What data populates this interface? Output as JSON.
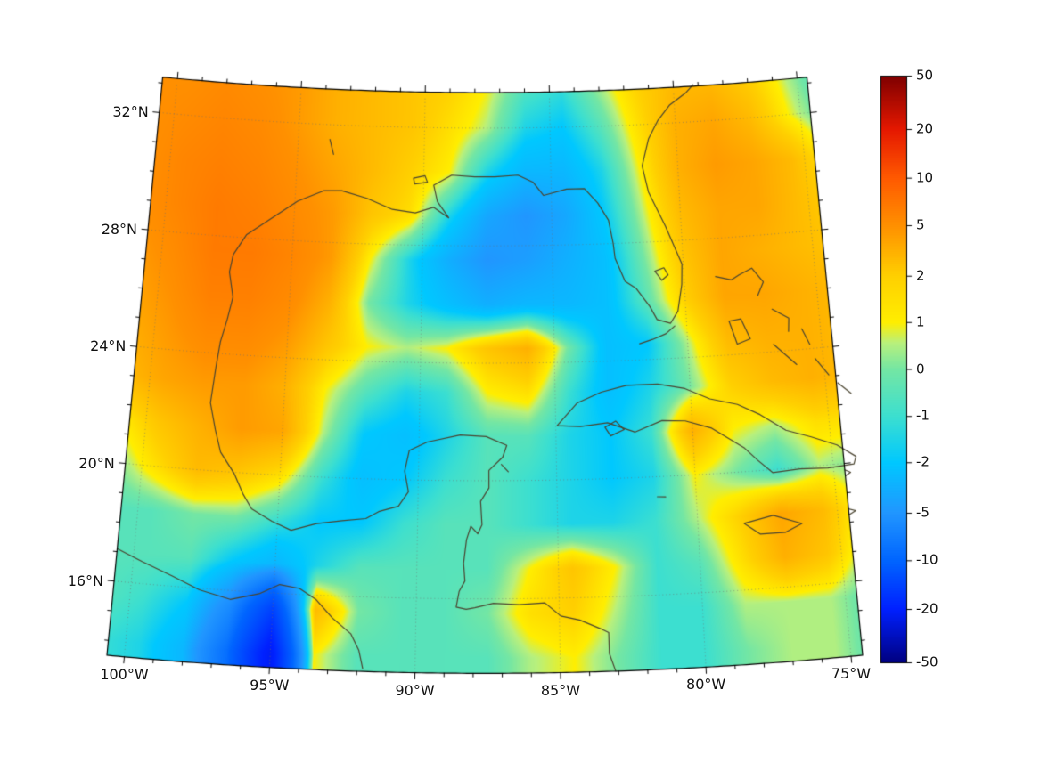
{
  "map": {
    "extent": {
      "lon_min": -100.6,
      "lon_max": -74.6,
      "lat_min": 13.5,
      "lat_max": 33.2
    },
    "projection": {
      "type": "lambert-conformal-conic",
      "std_parallel_1": 20,
      "std_parallel_2": 30,
      "center_lon": -87.6
    },
    "lat_ticks": [
      {
        "value": 32,
        "label": "32°N"
      },
      {
        "value": 28,
        "label": "28°N"
      },
      {
        "value": 24,
        "label": "24°N"
      },
      {
        "value": 20,
        "label": "20°N"
      },
      {
        "value": 16,
        "label": "16°N"
      }
    ],
    "lon_ticks": [
      {
        "value": -100,
        "label": "100°W"
      },
      {
        "value": -95,
        "label": "95°W"
      },
      {
        "value": -90,
        "label": "90°W"
      },
      {
        "value": -85,
        "label": "85°W"
      },
      {
        "value": -80,
        "label": "80°W"
      },
      {
        "value": -75,
        "label": "75°W"
      }
    ],
    "minor_tick_step_deg": 1,
    "coastline_color": "#4a4430",
    "graticule_color": "#6f6f6f",
    "frame_color": "#000000"
  },
  "colorbar": {
    "range": [
      -50,
      50
    ],
    "ticks": [
      {
        "value": 50,
        "label": "50"
      },
      {
        "value": 20,
        "label": "20"
      },
      {
        "value": 10,
        "label": "10"
      },
      {
        "value": 5,
        "label": "5"
      },
      {
        "value": 2,
        "label": "2"
      },
      {
        "value": 1,
        "label": "1"
      },
      {
        "value": 0,
        "label": "0"
      },
      {
        "value": -1,
        "label": "-1"
      },
      {
        "value": -2,
        "label": "-2"
      },
      {
        "value": -5,
        "label": "-5"
      },
      {
        "value": -10,
        "label": "-10"
      },
      {
        "value": -20,
        "label": "-20"
      },
      {
        "value": -50,
        "label": "-50"
      }
    ]
  },
  "chart_data": {
    "type": "heatmap",
    "description": "Scalar field over the Gulf of Mexico / western Caribbean on a Lambert conformal map, symlog-like color scale from -50 to 50",
    "scale": {
      "values": [
        -50,
        -20,
        -10,
        -5,
        -2,
        -1,
        0,
        1,
        2,
        5,
        10,
        20,
        50
      ],
      "fractions": [
        0,
        0.091,
        0.174,
        0.255,
        0.341,
        0.42,
        0.5,
        0.58,
        0.659,
        0.745,
        0.826,
        0.909,
        1
      ]
    },
    "colormap": [
      {
        "t": 0.0,
        "color": "#000080"
      },
      {
        "t": 0.091,
        "color": "#0020ff"
      },
      {
        "t": 0.174,
        "color": "#0065ff"
      },
      {
        "t": 0.255,
        "color": "#2196ff"
      },
      {
        "t": 0.341,
        "color": "#00c8ff"
      },
      {
        "t": 0.42,
        "color": "#3cdfd0"
      },
      {
        "t": 0.5,
        "color": "#74e6a4"
      },
      {
        "t": 0.545,
        "color": "#b8f07d"
      },
      {
        "t": 0.58,
        "color": "#ffee00"
      },
      {
        "t": 0.659,
        "color": "#ffd000"
      },
      {
        "t": 0.745,
        "color": "#ff9000"
      },
      {
        "t": 0.826,
        "color": "#ff5a00"
      },
      {
        "t": 0.909,
        "color": "#e51800"
      },
      {
        "t": 1.0,
        "color": "#7f0000"
      }
    ],
    "lon": [
      -101,
      -99.5,
      -98,
      -96.5,
      -95,
      -93.5,
      -92,
      -90.5,
      -89,
      -87.5,
      -86,
      -84.5,
      -83,
      -81.5,
      -80,
      -78.5,
      -77,
      -75.5,
      -74
    ],
    "lat": [
      33.5,
      32,
      30.5,
      29,
      27.5,
      26,
      24.5,
      23,
      21.5,
      20,
      18.5,
      17,
      15.5,
      14
    ],
    "values": [
      [
        5,
        5,
        5.5,
        5,
        4.5,
        3.5,
        3,
        2.5,
        2,
        1,
        -0.5,
        -1,
        0.5,
        2,
        3,
        3,
        2,
        0.5,
        -1
      ],
      [
        5,
        5.5,
        6,
        5.5,
        4.5,
        3.5,
        3,
        2.5,
        1.5,
        0.5,
        -1.5,
        -2,
        -0.5,
        1.5,
        3.5,
        4,
        3,
        1,
        -0.5
      ],
      [
        5,
        6,
        6.5,
        6,
        5,
        4,
        3,
        2,
        1,
        -1.5,
        -3,
        -3,
        -1.5,
        1,
        3.5,
        4.5,
        4,
        3,
        1
      ],
      [
        5,
        6,
        7,
        6.5,
        5.5,
        4.5,
        2.5,
        1.5,
        -1.5,
        -4,
        -5,
        -4,
        -2,
        0.5,
        3,
        4,
        4,
        3,
        2
      ],
      [
        4.5,
        5.5,
        7,
        7,
        6,
        4.5,
        1,
        -1.5,
        -3.5,
        -5,
        -4.5,
        -3.5,
        -2.5,
        0,
        2.5,
        4,
        3.5,
        3,
        2.5
      ],
      [
        4,
        5,
        6.5,
        6.5,
        5.5,
        3.5,
        0,
        -1.5,
        -2.5,
        -3.5,
        -3,
        -3,
        -2.5,
        -0.5,
        2,
        4,
        4,
        3.5,
        3
      ],
      [
        3.5,
        4.5,
        5.5,
        5.5,
        4.5,
        2.5,
        1,
        0.5,
        1,
        2.5,
        3.5,
        0,
        -2.5,
        -2,
        0.5,
        3,
        3.5,
        3.5,
        3
      ],
      [
        3,
        4,
        4.5,
        4.5,
        3.5,
        1,
        -0.5,
        -1.5,
        -1,
        1,
        1.5,
        -1,
        -2.5,
        -1.5,
        0,
        2,
        3,
        3.5,
        3
      ],
      [
        1,
        2.5,
        3.5,
        4.5,
        4,
        0.5,
        -2,
        -2.5,
        -1.5,
        -0.5,
        -0.5,
        -1.5,
        -2,
        -1,
        3.5,
        1,
        0.5,
        1.5,
        1.5
      ],
      [
        0,
        1.5,
        3,
        2.5,
        1.5,
        -1,
        -2.5,
        -2,
        -1,
        -0.5,
        -1,
        -1.5,
        -2,
        -1.5,
        1,
        0,
        -1,
        0.5,
        0
      ],
      [
        -0.5,
        -0.5,
        0,
        0,
        -1,
        -2,
        -2,
        -1,
        -0.5,
        -0.5,
        -1,
        -1.5,
        -1.5,
        -1,
        0.5,
        2,
        4,
        3,
        0.5
      ],
      [
        -0.5,
        -0.5,
        -0.5,
        -2,
        -3,
        -1.5,
        -0.5,
        -0.5,
        -0.5,
        -0.5,
        1,
        2.5,
        1,
        -1,
        -0.5,
        1.5,
        3.5,
        2.5,
        0
      ],
      [
        -0.5,
        -1,
        -2,
        -6,
        -15,
        3,
        0,
        -0.5,
        -0.5,
        0,
        1.5,
        2,
        0.5,
        -1,
        -1,
        0.5,
        0.5,
        0.5,
        -0.5
      ],
      [
        -1,
        -1.5,
        -3,
        -9,
        -22,
        1,
        -0.5,
        -0.5,
        -0.5,
        -0.5,
        0.5,
        1,
        0,
        -1,
        -1,
        0,
        0.5,
        0.5,
        -0.5
      ]
    ],
    "coastlines": [
      [
        [
          -83.1,
          13.5
        ],
        [
          -83.3,
          14.1
        ],
        [
          -83.3,
          14.8
        ],
        [
          -83.6,
          14.95
        ],
        [
          -84.3,
          15.25
        ],
        [
          -84.95,
          15.4
        ],
        [
          -85.5,
          15.85
        ],
        [
          -86.4,
          15.8
        ],
        [
          -87.3,
          15.85
        ],
        [
          -87.95,
          15.7
        ],
        [
          -88.25,
          15.65
        ],
        [
          -88.6,
          15.72
        ],
        [
          -88.5,
          16.25
        ],
        [
          -88.3,
          16.6
        ],
        [
          -88.35,
          17.2
        ],
        [
          -88.25,
          18.0
        ],
        [
          -88.1,
          18.45
        ],
        [
          -87.85,
          18.2
        ],
        [
          -87.7,
          18.5
        ],
        [
          -87.75,
          19.3
        ],
        [
          -87.45,
          19.75
        ],
        [
          -87.45,
          20.35
        ],
        [
          -86.95,
          20.8
        ],
        [
          -86.8,
          21.2
        ],
        [
          -87.55,
          21.5
        ],
        [
          -88.5,
          21.55
        ],
        [
          -89.7,
          21.3
        ],
        [
          -90.35,
          21.0
        ],
        [
          -90.5,
          20.3
        ],
        [
          -90.35,
          19.6
        ],
        [
          -90.7,
          19.1
        ],
        [
          -91.4,
          18.9
        ],
        [
          -91.85,
          18.65
        ],
        [
          -92.7,
          18.55
        ],
        [
          -93.6,
          18.42
        ],
        [
          -94.5,
          18.15
        ],
        [
          -95.2,
          18.42
        ],
        [
          -95.95,
          18.8
        ],
        [
          -96.3,
          19.3
        ],
        [
          -96.65,
          19.95
        ],
        [
          -97.2,
          20.65
        ],
        [
          -97.45,
          21.4
        ],
        [
          -97.7,
          22.3
        ],
        [
          -97.6,
          23.5
        ],
        [
          -97.5,
          24.4
        ],
        [
          -97.3,
          25.2
        ],
        [
          -97.15,
          25.95
        ],
        [
          -97.35,
          26.8
        ],
        [
          -97.25,
          27.4
        ],
        [
          -96.8,
          28.1
        ],
        [
          -95.9,
          28.7
        ],
        [
          -94.9,
          29.35
        ],
        [
          -93.9,
          29.75
        ],
        [
          -93.2,
          29.78
        ],
        [
          -92.2,
          29.55
        ],
        [
          -91.2,
          29.2
        ],
        [
          -90.3,
          29.1
        ],
        [
          -89.6,
          29.3
        ],
        [
          -89.0,
          28.95
        ],
        [
          -89.45,
          29.5
        ],
        [
          -89.6,
          30.05
        ],
        [
          -88.9,
          30.4
        ],
        [
          -88.0,
          30.35
        ],
        [
          -87.2,
          30.35
        ],
        [
          -86.3,
          30.4
        ],
        [
          -85.7,
          30.15
        ],
        [
          -85.3,
          29.7
        ],
        [
          -84.4,
          29.9
        ],
        [
          -83.7,
          29.9
        ],
        [
          -83.2,
          29.4
        ],
        [
          -82.8,
          28.8
        ],
        [
          -82.65,
          28.0
        ],
        [
          -82.6,
          27.5
        ],
        [
          -82.25,
          26.7
        ],
        [
          -81.85,
          26.45
        ],
        [
          -81.35,
          25.8
        ],
        [
          -81.1,
          25.35
        ],
        [
          -80.6,
          25.2
        ],
        [
          -80.3,
          25.6
        ],
        [
          -80.1,
          26.5
        ],
        [
          -80.05,
          27.2
        ],
        [
          -80.35,
          27.9
        ],
        [
          -80.6,
          28.5
        ],
        [
          -81.2,
          29.7
        ],
        [
          -81.4,
          30.6
        ],
        [
          -81.1,
          31.5
        ],
        [
          -80.7,
          32.1
        ],
        [
          -80.2,
          32.6
        ],
        [
          -79.5,
          33.0
        ],
        [
          -79.2,
          33.25
        ]
      ],
      [
        [
          -100.6,
          17.1
        ],
        [
          -99.7,
          16.75
        ],
        [
          -98.6,
          16.35
        ],
        [
          -97.6,
          15.95
        ],
        [
          -96.5,
          15.7
        ],
        [
          -95.5,
          15.95
        ],
        [
          -94.8,
          16.3
        ],
        [
          -94.1,
          16.2
        ],
        [
          -93.5,
          15.85
        ],
        [
          -92.9,
          15.25
        ],
        [
          -92.25,
          14.75
        ],
        [
          -91.95,
          14.2
        ],
        [
          -91.8,
          13.6
        ]
      ],
      [
        [
          -84.95,
          21.85
        ],
        [
          -84.2,
          22.6
        ],
        [
          -83.3,
          22.95
        ],
        [
          -82.35,
          23.15
        ],
        [
          -81.2,
          23.15
        ],
        [
          -80.2,
          22.95
        ],
        [
          -79.3,
          22.55
        ],
        [
          -78.3,
          22.3
        ],
        [
          -77.5,
          21.9
        ],
        [
          -76.6,
          21.3
        ],
        [
          -75.7,
          21.0
        ],
        [
          -74.8,
          20.65
        ],
        [
          -74.15,
          20.2
        ],
        [
          -74.25,
          19.95
        ],
        [
          -75.2,
          19.9
        ],
        [
          -76.2,
          19.95
        ],
        [
          -77.2,
          19.9
        ],
        [
          -77.7,
          20.35
        ],
        [
          -78.15,
          20.8
        ],
        [
          -79.3,
          21.55
        ],
        [
          -80.25,
          21.85
        ],
        [
          -81.1,
          21.9
        ],
        [
          -82.1,
          21.55
        ],
        [
          -83.1,
          21.9
        ],
        [
          -84.1,
          21.8
        ],
        [
          -84.95,
          21.85
        ]
      ],
      [
        [
          -83.2,
          21.75
        ],
        [
          -82.8,
          21.95
        ],
        [
          -82.5,
          21.65
        ],
        [
          -83.0,
          21.45
        ],
        [
          -83.2,
          21.75
        ]
      ],
      [
        [
          -78.35,
          18.25
        ],
        [
          -77.3,
          18.45
        ],
        [
          -76.3,
          18.1
        ],
        [
          -76.9,
          17.85
        ],
        [
          -77.8,
          17.85
        ],
        [
          -78.35,
          18.25
        ]
      ],
      [
        [
          -74.6,
          19.78
        ],
        [
          -74.4,
          19.68
        ],
        [
          -74.6,
          19.58
        ]
      ],
      [
        [
          -74.6,
          18.45
        ],
        [
          -74.35,
          18.37
        ],
        [
          -74.6,
          18.25
        ]
      ],
      [
        [
          -78.8,
          26.7
        ],
        [
          -78.2,
          26.55
        ],
        [
          -77.9,
          26.7
        ],
        [
          -77.4,
          26.9
        ],
        [
          -77.0,
          26.4
        ],
        [
          -77.25,
          25.95
        ]
      ],
      [
        [
          -78.4,
          25.15
        ],
        [
          -77.95,
          25.2
        ],
        [
          -77.65,
          24.5
        ],
        [
          -78.15,
          24.35
        ],
        [
          -78.4,
          25.15
        ]
      ],
      [
        [
          -76.75,
          25.45
        ],
        [
          -76.15,
          25.1
        ],
        [
          -76.2,
          24.65
        ]
      ],
      [
        [
          -76.8,
          24.25
        ],
        [
          -76.0,
          23.5
        ]
      ],
      [
        [
          -75.3,
          23.65
        ],
        [
          -74.85,
          23.05
        ]
      ],
      [
        [
          -75.7,
          24.7
        ],
        [
          -75.45,
          24.15
        ]
      ],
      [
        [
          -74.55,
          22.75
        ],
        [
          -74.1,
          22.35
        ]
      ],
      [
        [
          -81.8,
          24.55
        ],
        [
          -81.3,
          24.68
        ],
        [
          -80.8,
          24.85
        ],
        [
          -80.45,
          25.1
        ]
      ],
      [
        [
          -81.1,
          27.0
        ],
        [
          -80.75,
          27.1
        ],
        [
          -80.6,
          26.85
        ],
        [
          -80.85,
          26.68
        ],
        [
          -81.1,
          27.0
        ]
      ],
      [
        [
          -90.4,
          30.28
        ],
        [
          -89.95,
          30.37
        ],
        [
          -89.85,
          30.15
        ],
        [
          -90.35,
          30.08
        ],
        [
          -90.4,
          30.28
        ]
      ],
      [
        [
          -87.0,
          20.55
        ],
        [
          -86.75,
          20.3
        ]
      ],
      [
        [
          -81.4,
          19.32
        ],
        [
          -81.1,
          19.3
        ]
      ],
      [
        [
          -93.75,
          31.5
        ],
        [
          -93.58,
          31.0
        ]
      ]
    ]
  }
}
